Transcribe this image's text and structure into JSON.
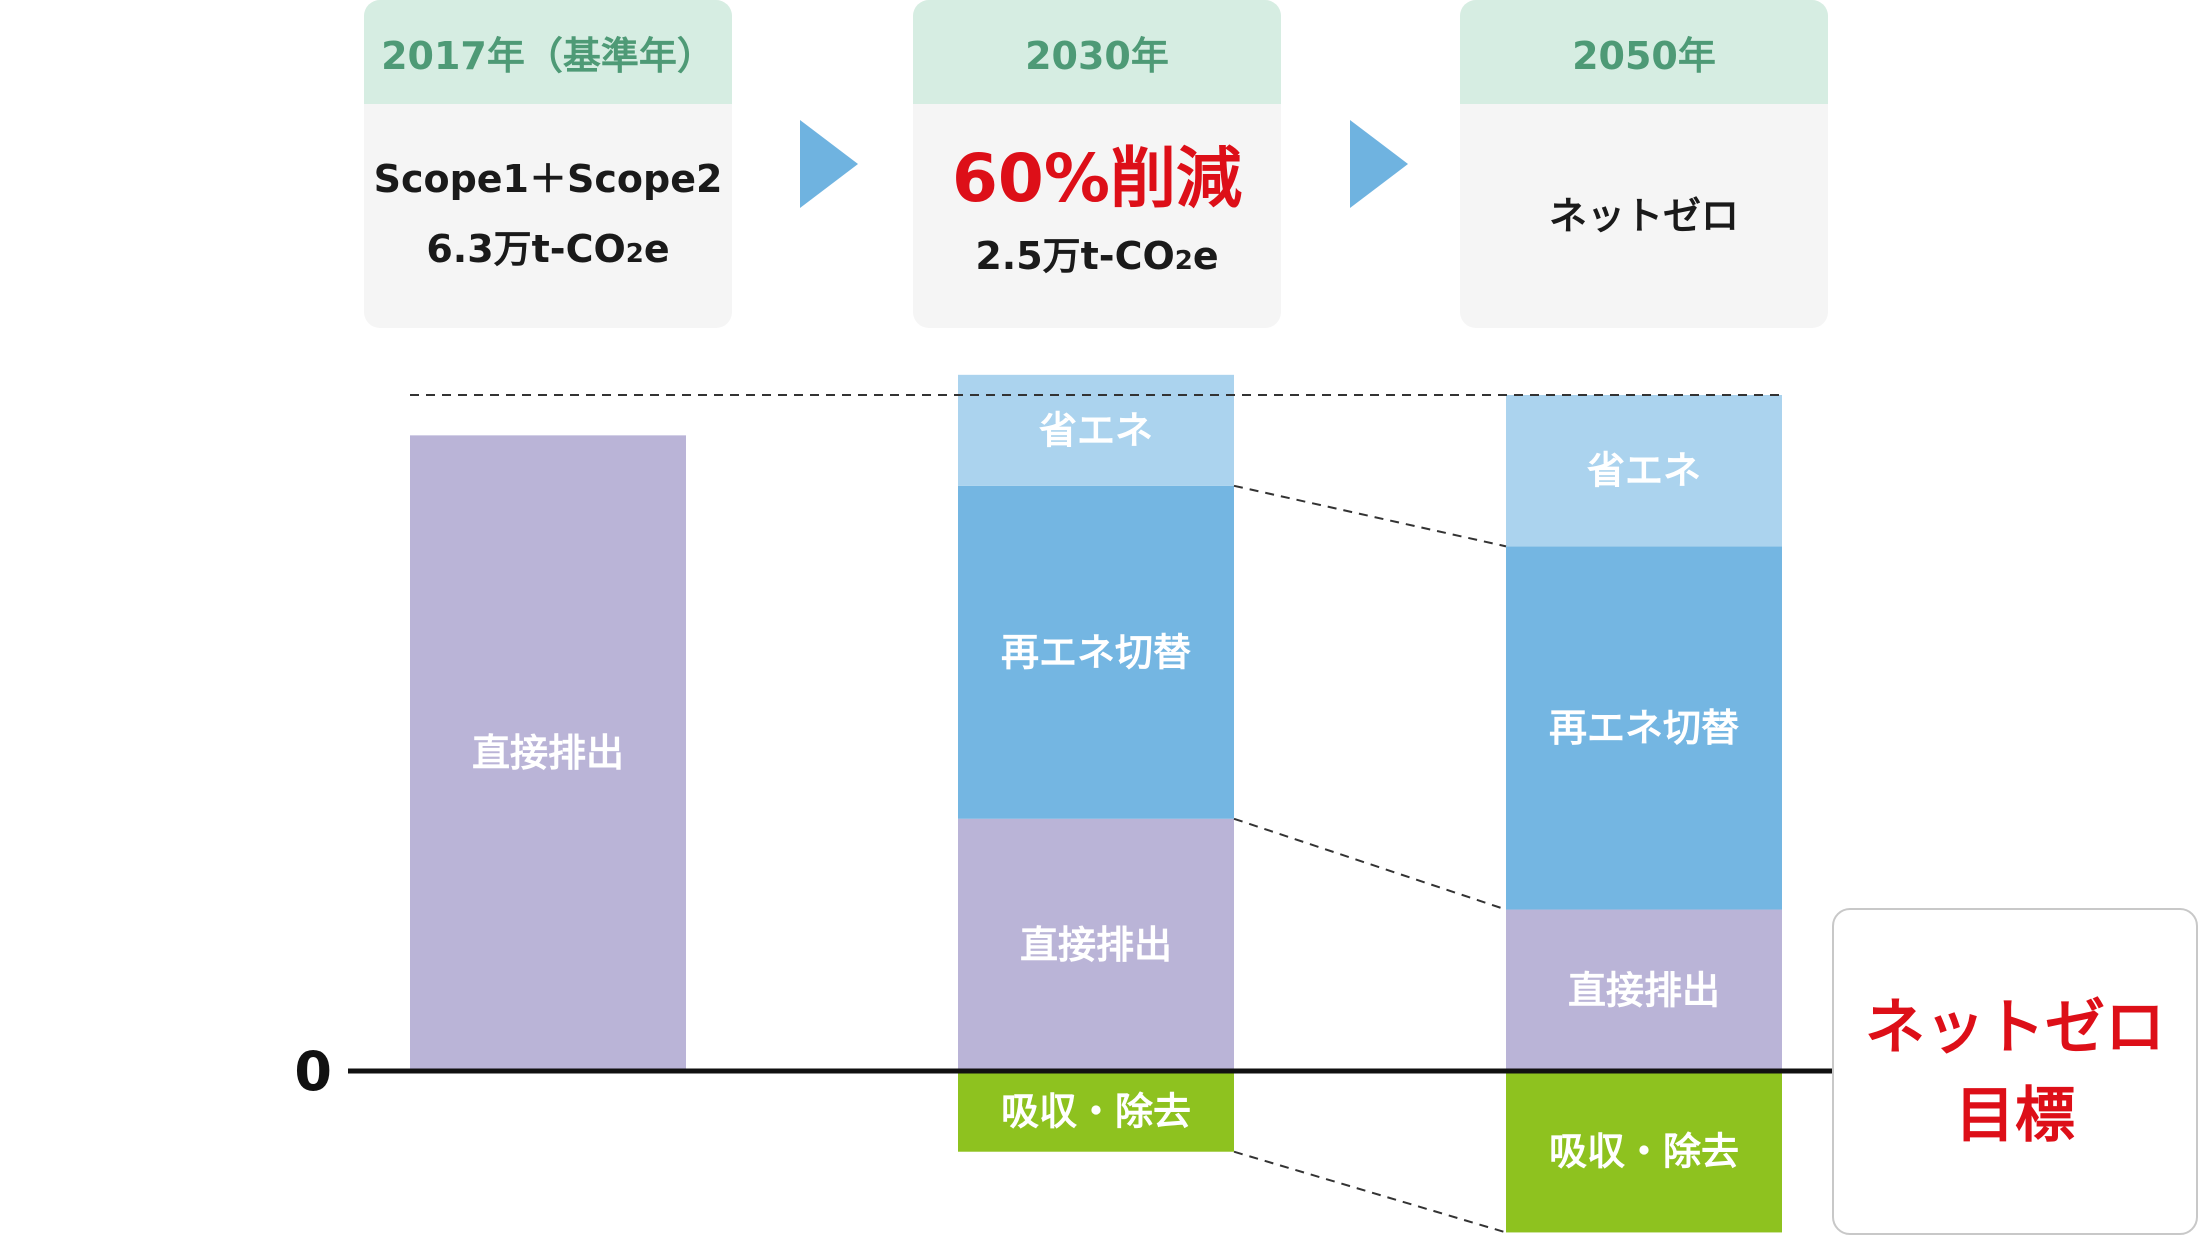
{
  "cards": [
    {
      "year": "2017年（基準年）",
      "line1": "Scope1＋Scope2",
      "line2_pre": "6.3万t-CO",
      "line2_sub": "2",
      "line2_post": "e"
    },
    {
      "year": "2030年",
      "highlight": "60%削減",
      "line2_pre": "2.5万t-CO",
      "line2_sub": "2",
      "line2_post": "e"
    },
    {
      "year": "2050年",
      "line1": "ネットゼロ"
    }
  ],
  "colors": {
    "direct": "#bab4d7",
    "renewable": "#74b6e2",
    "energy_saving": "#abd3ee",
    "absorption": "#8ec21f",
    "accent_red": "#dd0f18",
    "card_head": "#d6ede2",
    "arrow": "#6fb3e0"
  },
  "chart_data": {
    "type": "bar",
    "categories": [
      "2017年",
      "2030年",
      "2050年"
    ],
    "zero_label": "0",
    "series": [
      {
        "name": "直接排出",
        "values": [
          6.3,
          2.5,
          1.6
        ]
      },
      {
        "name": "再エネ切替",
        "values": [
          0,
          3.3,
          3.6
        ]
      },
      {
        "name": "省エネ",
        "values": [
          0,
          1.1,
          1.5
        ]
      },
      {
        "name": "吸収・除去",
        "values": [
          0,
          -0.8,
          -1.6
        ]
      }
    ],
    "labels": {
      "direct": "直接排出",
      "renewable": "再エネ切替",
      "energy_saving": "省エネ",
      "absorption": "吸収・除去"
    },
    "ylim": [
      -1.6,
      6.7
    ]
  },
  "goal": {
    "line1": "ネットゼロ",
    "line2": "目標"
  }
}
